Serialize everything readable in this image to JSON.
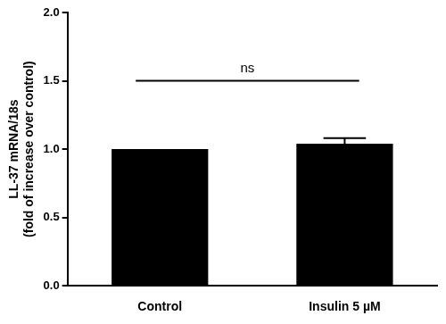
{
  "chart_data": {
    "type": "bar",
    "ylabel": [
      "LL-37 mRNA/18s",
      "(fold of increase over control)"
    ],
    "categories": [
      "Control",
      "Insulin 5 µM"
    ],
    "values": [
      1.0,
      1.04
    ],
    "errors": [
      null,
      0.04
    ],
    "color": "#000000",
    "ylim": [
      0,
      2
    ],
    "yticks": [
      {
        "value": 0,
        "label": "0.0"
      },
      {
        "value": 0.5,
        "label": "0.5"
      },
      {
        "value": 1,
        "label": "1.0"
      },
      {
        "value": 1.5,
        "label": "1.5"
      },
      {
        "value": 2,
        "label": "2.0"
      }
    ],
    "annotations": [
      {
        "text": "ns",
        "y": 1.5,
        "from": "Control",
        "to": "Insulin 5 µM"
      }
    ],
    "grid": false
  }
}
